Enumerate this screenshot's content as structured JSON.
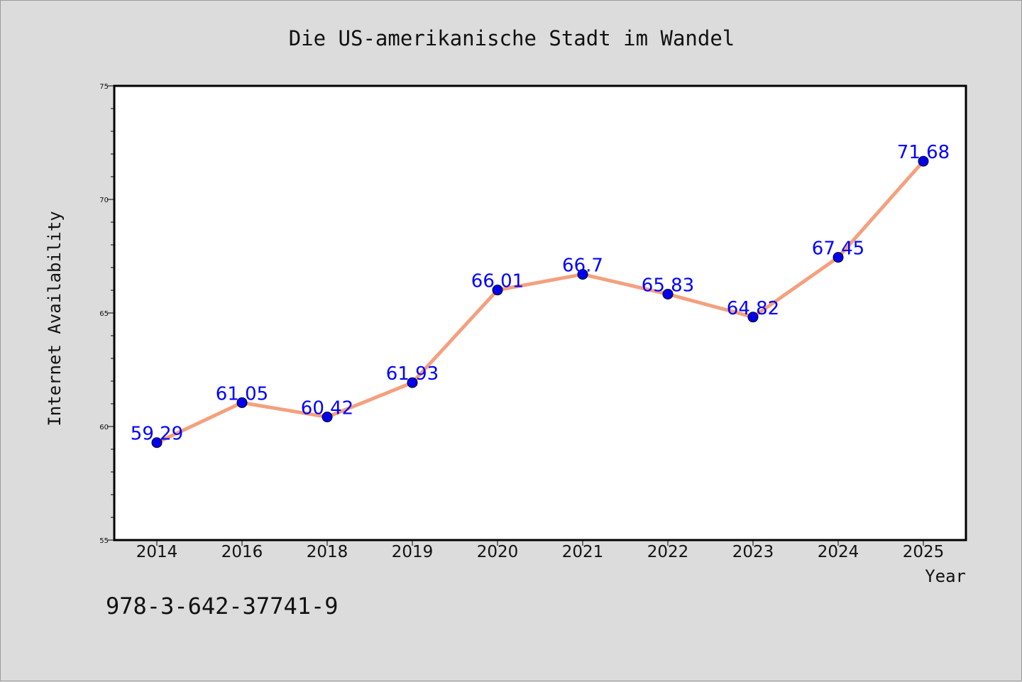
{
  "chart_data": {
    "type": "line",
    "title": "Die US-amerikanische Stadt im Wandel",
    "xlabel": "Year",
    "ylabel": "Internet Availability",
    "categories": [
      "2014",
      "2016",
      "2018",
      "2019",
      "2020",
      "2021",
      "2022",
      "2023",
      "2024",
      "2025"
    ],
    "series": [
      {
        "values": [
          59.29,
          61.05,
          60.42,
          61.93,
          66.01,
          66.7,
          65.83,
          64.82,
          67.45,
          71.68
        ]
      }
    ],
    "data_labels": [
      "59.29",
      "61.05",
      "60.42",
      "61.93",
      "66.01",
      "66.7",
      "65.83",
      "64.82",
      "67.45",
      "71.68"
    ],
    "ylim": [
      55,
      75
    ],
    "yticks": [
      55,
      60,
      65,
      70,
      75
    ],
    "grid": false,
    "legend": "none",
    "colors": {
      "line": "#f4a07e",
      "marker": "#0000ee",
      "label": "#0000ff",
      "background": "#dcdcdc",
      "plot_area": "#ffffff"
    }
  },
  "footer": {
    "isbn": "978-3-642-37741-9"
  }
}
